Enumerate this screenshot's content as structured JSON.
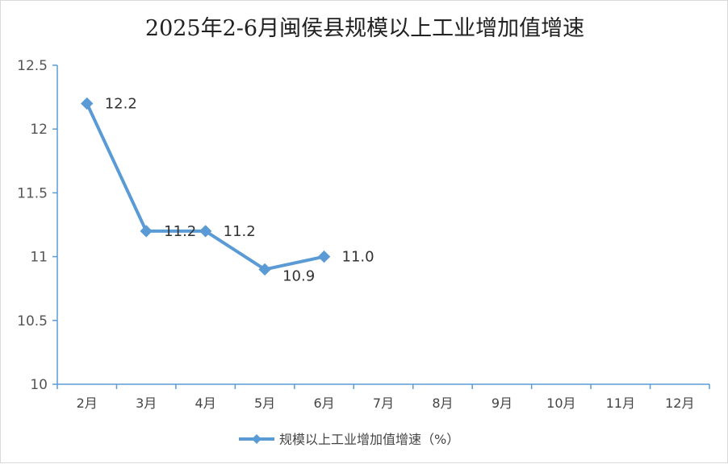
{
  "chart_data": {
    "type": "line",
    "title": "2025年2-6月闽侯县规模以上工业增加值增速",
    "categories": [
      "2月",
      "3月",
      "4月",
      "5月",
      "6月",
      "7月",
      "8月",
      "9月",
      "10月",
      "11月",
      "12月"
    ],
    "series": [
      {
        "name": "规模以上工业增加值增速（%）",
        "values": [
          12.2,
          11.2,
          11.2,
          10.9,
          11.0,
          null,
          null,
          null,
          null,
          null,
          null
        ],
        "data_labels": [
          "12.2",
          "11.2",
          "11.2",
          "10.9",
          "11.0"
        ],
        "color": "#5B9BD5",
        "marker": "diamond"
      }
    ],
    "yticks": [
      "10",
      "10.5",
      "11",
      "11.5",
      "12",
      "12.5"
    ],
    "ylim": [
      10,
      12.5
    ],
    "xlabel": "",
    "ylabel": "",
    "grid": false,
    "legend_position": "bottom",
    "axis_color": "#5B9BD5"
  }
}
